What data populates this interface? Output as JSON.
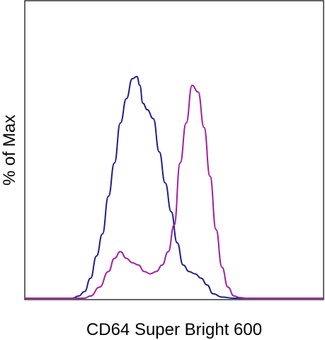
{
  "chart_data": {
    "type": "line",
    "xlabel": "CD64 Super Bright 600",
    "ylabel": "% of Max",
    "xlim": [
      0,
      1
    ],
    "ylim": [
      0,
      1
    ],
    "grid": false,
    "legend": "none",
    "series": [
      {
        "color": "#1f1f8f",
        "x": [
          0.0,
          0.16,
          0.18,
          0.2,
          0.22,
          0.24,
          0.26,
          0.28,
          0.3,
          0.32,
          0.34,
          0.36,
          0.375,
          0.385,
          0.395,
          0.41,
          0.43,
          0.45,
          0.47,
          0.49,
          0.51,
          0.53,
          0.55,
          0.57,
          0.59,
          0.61,
          0.63,
          0.66,
          0.7,
          0.8,
          1.0
        ],
        "y": [
          0.0,
          0.0,
          0.01,
          0.03,
          0.09,
          0.19,
          0.29,
          0.46,
          0.61,
          0.79,
          0.9,
          0.99,
          1.0,
          0.96,
          0.88,
          0.85,
          0.81,
          0.66,
          0.52,
          0.39,
          0.25,
          0.15,
          0.12,
          0.11,
          0.09,
          0.06,
          0.02,
          0.005,
          0.0,
          0.0,
          0.0
        ]
      },
      {
        "color": "#a020a0",
        "x": [
          0.0,
          0.2,
          0.22,
          0.25,
          0.28,
          0.3,
          0.32,
          0.34,
          0.36,
          0.38,
          0.4,
          0.42,
          0.44,
          0.46,
          0.48,
          0.5,
          0.52,
          0.54,
          0.56,
          0.58,
          0.6,
          0.62,
          0.64,
          0.66,
          0.68,
          0.7,
          0.72,
          0.74,
          0.8,
          1.0
        ],
        "y": [
          0.0,
          0.0,
          0.01,
          0.05,
          0.12,
          0.18,
          0.21,
          0.18,
          0.16,
          0.15,
          0.12,
          0.11,
          0.12,
          0.15,
          0.21,
          0.33,
          0.61,
          0.79,
          0.96,
          0.93,
          0.77,
          0.55,
          0.31,
          0.14,
          0.05,
          0.01,
          0.003,
          0.0,
          0.0,
          0.0
        ]
      }
    ]
  }
}
